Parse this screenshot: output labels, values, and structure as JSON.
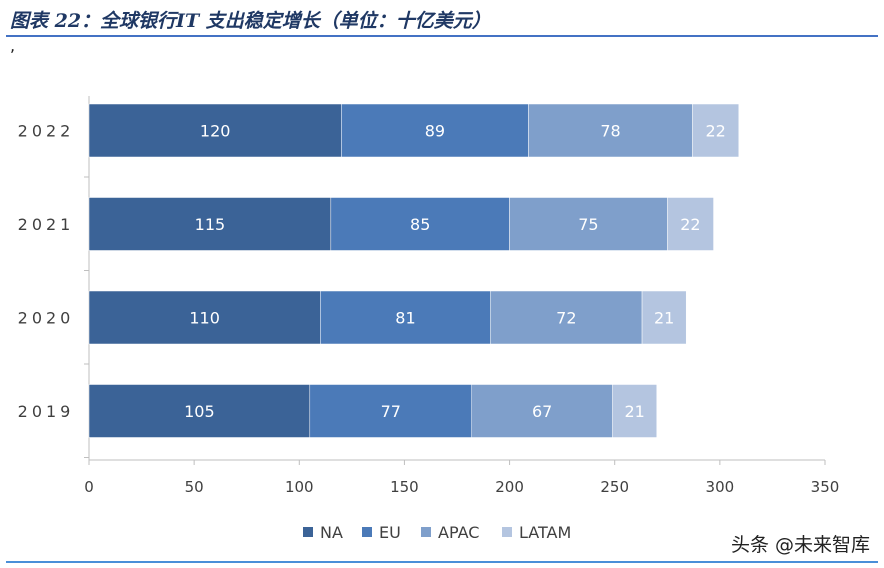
{
  "title": "图表 22：全球银行IT 支出稳定增长（单位：十亿美元）",
  "stray_mark": ",",
  "watermark": "头条 @未来智库",
  "chart_data": {
    "type": "bar",
    "orientation": "horizontal",
    "stacked": true,
    "title": "",
    "xlabel": "",
    "ylabel": "",
    "categories": [
      "2022",
      "2021",
      "2020",
      "2019"
    ],
    "series": [
      {
        "name": "NA",
        "color": "#3b6397",
        "values": [
          120,
          115,
          110,
          105
        ]
      },
      {
        "name": "EU",
        "color": "#4b7ab8",
        "values": [
          89,
          85,
          81,
          77
        ]
      },
      {
        "name": "APAC",
        "color": "#7f9fcb",
        "values": [
          78,
          75,
          72,
          67
        ]
      },
      {
        "name": "LATAM",
        "color": "#b4c5e0",
        "values": [
          22,
          22,
          21,
          21
        ]
      }
    ],
    "xlim": [
      0,
      350
    ],
    "xticks": [
      0,
      50,
      100,
      150,
      200,
      250,
      300,
      350
    ],
    "grid": false,
    "legend": "bottom",
    "data_labels": true
  }
}
